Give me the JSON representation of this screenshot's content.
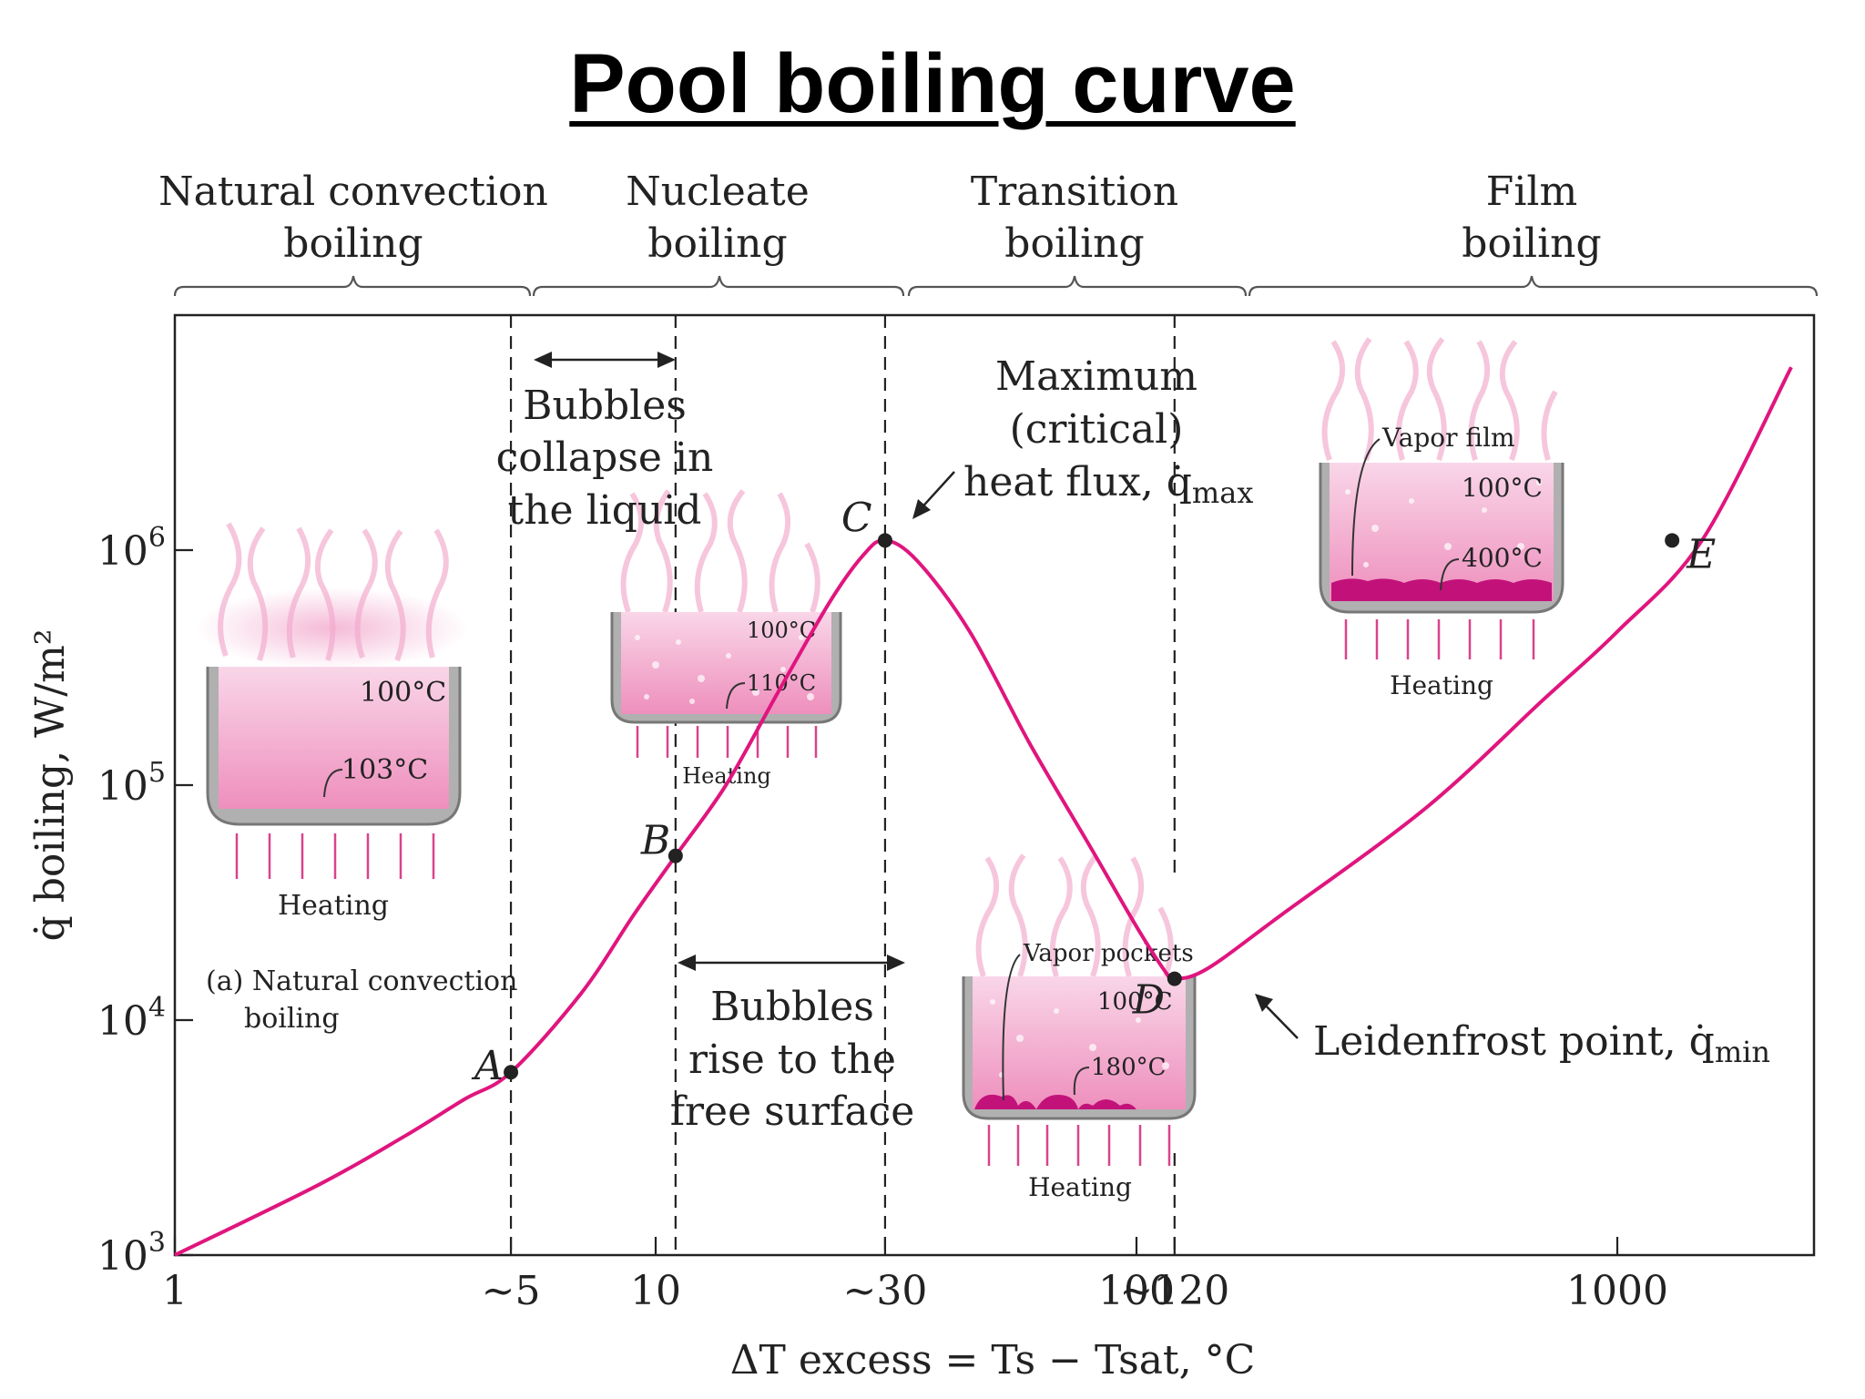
{
  "title": "Pool boiling curve",
  "colors": {
    "curve": "#e0157e",
    "pink_light": "#f6c6dd",
    "pink_mid": "#ee9cc4",
    "pan": "#9a9a9a",
    "vapor": "#c2127a"
  },
  "regimes": [
    {
      "line1": "Natural convection",
      "line2": "boiling"
    },
    {
      "line1": "Nucleate",
      "line2": "boiling"
    },
    {
      "line1": "Transition",
      "line2": "boiling"
    },
    {
      "line1": "Film",
      "line2": "boiling"
    }
  ],
  "annotations": {
    "bubbles_collapse": [
      "Bubbles",
      "collapse in",
      "the liquid"
    ],
    "bubbles_rise": [
      "Bubbles",
      "rise to the",
      "free surface"
    ],
    "max_flux": [
      "Maximum",
      "(critical)",
      "heat flux, q̇"
    ],
    "max_sub": "max",
    "leidenfrost": "Leidenfrost point, q̇",
    "leidenfrost_sub": "min"
  },
  "insets": {
    "natural": {
      "t_top": "100°C",
      "t_bottom": "103°C",
      "heating": "Heating",
      "caption1": "(a) Natural convection",
      "caption2": "boiling"
    },
    "nucleate": {
      "t_top": "100°C",
      "t_bottom": "110°C",
      "heating": "Heating"
    },
    "transition": {
      "label": "Vapor pockets",
      "t_top": "100°C",
      "t_bottom": "180°C",
      "heating": "Heating"
    },
    "film": {
      "label": "Vapor film",
      "t_top": "100°C",
      "t_bottom": "400°C",
      "heating": "Heating"
    }
  },
  "chart_data": {
    "type": "line",
    "title": "Pool boiling curve",
    "xlabel": "ΔT excess = Ts − Tsat, °C",
    "ylabel": "q̇ boiling, W/m²",
    "x_scale": "log",
    "y_scale": "log",
    "xlim": [
      1,
      2300
    ],
    "ylim": [
      1000,
      6500000
    ],
    "x_ticks": [
      {
        "value": 1,
        "label": "1"
      },
      {
        "value": 5,
        "label": "~5"
      },
      {
        "value": 10,
        "label": "10"
      },
      {
        "value": 30,
        "label": "~30"
      },
      {
        "value": 100,
        "label": "100"
      },
      {
        "value": 120,
        "label": "~120"
      },
      {
        "value": 1000,
        "label": "1000"
      }
    ],
    "y_ticks": [
      {
        "value": 1000,
        "base": "10",
        "exp": "3"
      },
      {
        "value": 10000,
        "base": "10",
        "exp": "4"
      },
      {
        "value": 100000,
        "base": "10",
        "exp": "5"
      },
      {
        "value": 1000000,
        "base": "10",
        "exp": "6"
      }
    ],
    "regime_boundaries": [
      5,
      30,
      120
    ],
    "extra_dashed": [
      11
    ],
    "curve": {
      "x": [
        1,
        2,
        3,
        4,
        5,
        7,
        9,
        11,
        14,
        18,
        23,
        27,
        30,
        35,
        45,
        60,
        80,
        100,
        115,
        120,
        140,
        200,
        400,
        700,
        1000,
        1500,
        2300
      ],
      "y": [
        1000,
        2000,
        3200,
        4600,
        6000,
        13000,
        28000,
        50000,
        100000,
        250000,
        600000,
        950000,
        1100000,
        900000,
        450000,
        150000,
        55000,
        25000,
        16000,
        15000,
        16500,
        28000,
        80000,
        230000,
        450000,
        1100000,
        6000000
      ]
    },
    "points": [
      {
        "label": "A",
        "x": 5,
        "y": 6000
      },
      {
        "label": "B",
        "x": 11,
        "y": 50000
      },
      {
        "label": "C",
        "x": 30,
        "y": 1100000
      },
      {
        "label": "D",
        "x": 120,
        "y": 15000
      },
      {
        "label": "E",
        "x": 1300,
        "y": 1100000
      }
    ]
  }
}
